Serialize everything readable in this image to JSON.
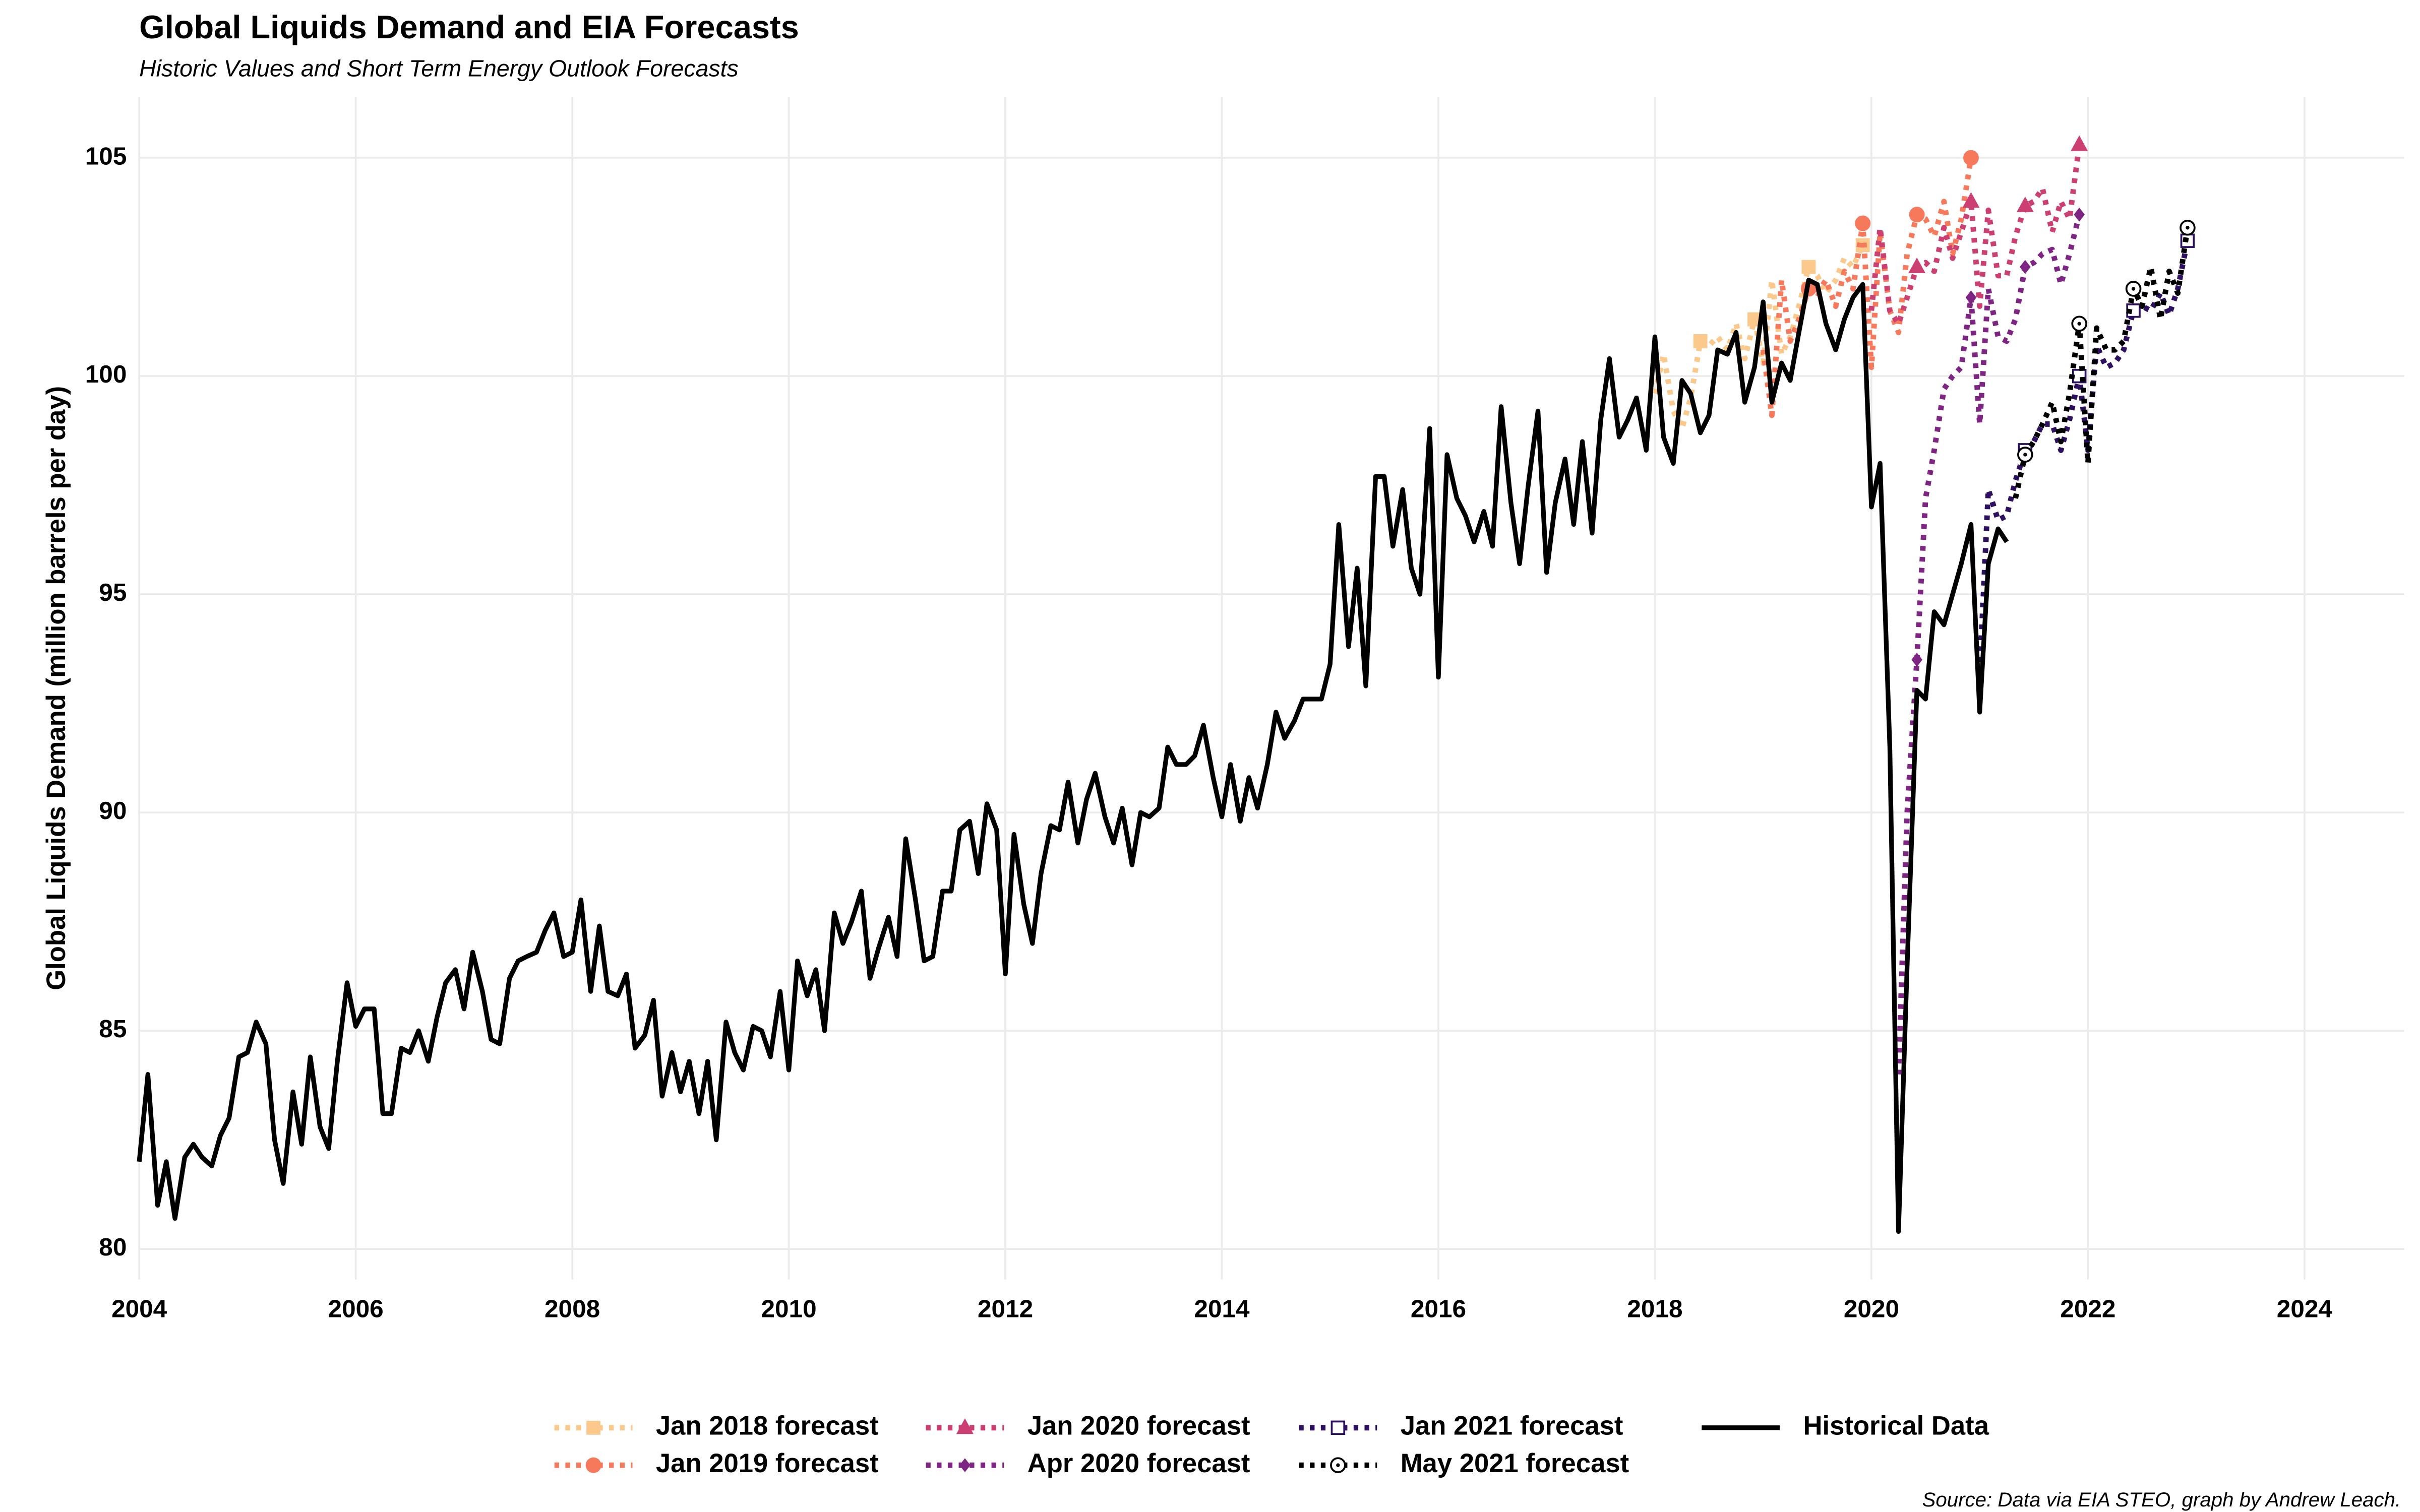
{
  "chart_data": {
    "type": "line",
    "title": "Global Liquids Demand and EIA Forecasts",
    "subtitle": "Historic Values and Short Term Energy Outlook Forecasts",
    "y_label": "Global Liquids Demand (million barrels per day)",
    "caption": "Source: Data via EIA STEO, graph by Andrew Leach.",
    "xlim": [
      2004,
      2024.92
    ],
    "ylim": [
      79.3,
      106.4
    ],
    "xticks": [
      2004,
      2006,
      2008,
      2010,
      2012,
      2014,
      2016,
      2018,
      2020,
      2022,
      2024
    ],
    "yticks": [
      80,
      85,
      90,
      95,
      100,
      105
    ],
    "grid": true,
    "legend": "bottom",
    "series": [
      {
        "name": "Jan 2018 forecast",
        "color": "#fcc98c",
        "dash": "dotted",
        "marker": "square",
        "x": [
          2018,
          2018.08,
          2018.17,
          2018.25,
          2018.33,
          2018.42,
          2018.5,
          2018.58,
          2018.67,
          2018.75,
          2018.83,
          2018.92,
          2019,
          2019.08,
          2019.17,
          2019.25,
          2019.33,
          2019.42,
          2019.5,
          2019.58,
          2019.67,
          2019.75,
          2019.83,
          2019.92
        ],
        "values": [
          99.6,
          100.5,
          99.2,
          98.8,
          99.5,
          100.8,
          100.7,
          100.9,
          100.6,
          101.2,
          100.4,
          101.3,
          100.3,
          102.2,
          100.5,
          100.9,
          101.6,
          102.5,
          102.3,
          101.9,
          102.2,
          102.7,
          102.5,
          103.0
        ]
      },
      {
        "name": "Jan 2019 forecast",
        "color": "#f7795c",
        "dash": "dotted",
        "marker": "circle",
        "x": [
          2019,
          2019.08,
          2019.17,
          2019.25,
          2019.33,
          2019.42,
          2019.5,
          2019.58,
          2019.67,
          2019.75,
          2019.83,
          2019.92,
          2020,
          2020.08,
          2020.17,
          2020.25,
          2020.33,
          2020.42,
          2020.5,
          2020.58,
          2020.67,
          2020.75,
          2020.83,
          2020.92
        ],
        "values": [
          100.6,
          99.1,
          102.2,
          100.8,
          101.3,
          102.0,
          101.9,
          102.2,
          101.6,
          102.4,
          102.0,
          103.5,
          100.2,
          103.3,
          101.5,
          101.0,
          102.8,
          103.7,
          103.6,
          103.2,
          104.0,
          102.8,
          103.6,
          105.0
        ]
      },
      {
        "name": "Jan 2020 forecast",
        "color": "#cc3f71",
        "dash": "dotted",
        "marker": "triangle",
        "x": [
          2020,
          2020.08,
          2020.17,
          2020.25,
          2020.33,
          2020.42,
          2020.5,
          2020.58,
          2020.67,
          2020.75,
          2020.83,
          2020.92,
          2021,
          2021.08,
          2021.17,
          2021.25,
          2021.33,
          2021.42,
          2021.5,
          2021.58,
          2021.67,
          2021.75,
          2021.83,
          2021.92
        ],
        "values": [
          101.5,
          103.4,
          101.5,
          101.2,
          101.8,
          102.5,
          102.6,
          102.4,
          103.4,
          102.7,
          103.3,
          104.0,
          101.6,
          103.8,
          102.3,
          102.3,
          103.2,
          103.9,
          104.0,
          104.3,
          103.3,
          104.0,
          103.6,
          105.3
        ]
      },
      {
        "name": "Apr 2020 forecast",
        "color": "#7e2482",
        "dash": "dotted",
        "marker": "diamond",
        "x": [
          2020.25,
          2020.33,
          2020.42,
          2020.5,
          2020.58,
          2020.67,
          2020.75,
          2020.83,
          2020.92,
          2021,
          2021.08,
          2021.17,
          2021.25,
          2021.33,
          2021.42,
          2021.5,
          2021.58,
          2021.67,
          2021.75,
          2021.83,
          2021.92
        ],
        "values": [
          84.0,
          90.0,
          93.5,
          97.2,
          98.3,
          99.7,
          100.0,
          100.2,
          101.8,
          98.9,
          102.0,
          100.9,
          100.8,
          101.3,
          102.5,
          102.6,
          102.8,
          102.9,
          102.1,
          102.8,
          103.7
        ]
      },
      {
        "name": "Jan 2021 forecast",
        "color": "#2d1160",
        "dash": "dotted",
        "marker": "square-open",
        "x": [
          2021,
          2021.08,
          2021.17,
          2021.25,
          2021.33,
          2021.42,
          2021.5,
          2021.58,
          2021.67,
          2021.75,
          2021.83,
          2021.92,
          2022,
          2022.08,
          2022.17,
          2022.25,
          2022.33,
          2022.42,
          2022.5,
          2022.58,
          2022.67,
          2022.75,
          2022.83,
          2022.92
        ],
        "values": [
          93.2,
          97.4,
          96.7,
          96.8,
          97.6,
          98.3,
          98.5,
          98.9,
          98.9,
          98.3,
          99.0,
          100.0,
          98.3,
          100.7,
          100.2,
          100.3,
          100.6,
          101.5,
          101.6,
          101.5,
          101.9,
          101.4,
          102.0,
          103.1
        ]
      },
      {
        "name": "May 2021 forecast",
        "color": "#000000",
        "dash": "dotted",
        "marker": "circle-open",
        "x": [
          2021.33,
          2021.42,
          2021.5,
          2021.58,
          2021.67,
          2021.75,
          2021.83,
          2021.92,
          2022,
          2022.08,
          2022.17,
          2022.25,
          2022.33,
          2022.42,
          2022.5,
          2022.58,
          2022.67,
          2022.75,
          2022.83,
          2022.92
        ],
        "values": [
          97.2,
          98.2,
          98.5,
          98.9,
          99.4,
          98.5,
          99.6,
          101.2,
          98.0,
          101.1,
          100.6,
          100.6,
          100.8,
          102.0,
          101.6,
          102.5,
          101.3,
          102.4,
          101.9,
          103.4
        ]
      },
      {
        "name": "Historical Data",
        "color": "#000000",
        "dash": "solid",
        "marker": "none",
        "x": [
          2004,
          2004.08,
          2004.17,
          2004.25,
          2004.33,
          2004.42,
          2004.5,
          2004.58,
          2004.67,
          2004.75,
          2004.83,
          2004.92,
          2005,
          2005.08,
          2005.17,
          2005.25,
          2005.33,
          2005.42,
          2005.5,
          2005.58,
          2005.67,
          2005.75,
          2005.83,
          2005.92,
          2006,
          2006.08,
          2006.17,
          2006.25,
          2006.33,
          2006.42,
          2006.5,
          2006.58,
          2006.67,
          2006.75,
          2006.83,
          2006.92,
          2007,
          2007.08,
          2007.17,
          2007.25,
          2007.33,
          2007.42,
          2007.5,
          2007.58,
          2007.67,
          2007.75,
          2007.83,
          2007.92,
          2008,
          2008.08,
          2008.17,
          2008.25,
          2008.33,
          2008.42,
          2008.5,
          2008.58,
          2008.67,
          2008.75,
          2008.83,
          2008.92,
          2009,
          2009.08,
          2009.17,
          2009.25,
          2009.33,
          2009.42,
          2009.5,
          2009.58,
          2009.67,
          2009.75,
          2009.83,
          2009.92,
          2010,
          2010.08,
          2010.17,
          2010.25,
          2010.33,
          2010.42,
          2010.5,
          2010.58,
          2010.67,
          2010.75,
          2010.83,
          2010.92,
          2011,
          2011.08,
          2011.17,
          2011.25,
          2011.33,
          2011.42,
          2011.5,
          2011.58,
          2011.67,
          2011.75,
          2011.83,
          2011.92,
          2012,
          2012.08,
          2012.17,
          2012.25,
          2012.33,
          2012.42,
          2012.5,
          2012.58,
          2012.67,
          2012.75,
          2012.83,
          2012.92,
          2013,
          2013.08,
          2013.17,
          2013.25,
          2013.33,
          2013.42,
          2013.5,
          2013.58,
          2013.67,
          2013.75,
          2013.83,
          2013.92,
          2014,
          2014.08,
          2014.17,
          2014.25,
          2014.33,
          2014.42,
          2014.5,
          2014.58,
          2014.67,
          2014.75,
          2014.83,
          2014.92,
          2015,
          2015.08,
          2015.17,
          2015.25,
          2015.33,
          2015.42,
          2015.5,
          2015.58,
          2015.67,
          2015.75,
          2015.83,
          2015.92,
          2016,
          2016.08,
          2016.17,
          2016.25,
          2016.33,
          2016.42,
          2016.5,
          2016.58,
          2016.67,
          2016.75,
          2016.83,
          2016.92,
          2017,
          2017.08,
          2017.17,
          2017.25,
          2017.33,
          2017.42,
          2017.5,
          2017.58,
          2017.67,
          2017.75,
          2017.83,
          2017.92,
          2018,
          2018.08,
          2018.17,
          2018.25,
          2018.33,
          2018.42,
          2018.5,
          2018.58,
          2018.67,
          2018.75,
          2018.83,
          2018.92,
          2019,
          2019.08,
          2019.17,
          2019.25,
          2019.33,
          2019.42,
          2019.5,
          2019.58,
          2019.67,
          2019.75,
          2019.83,
          2019.92,
          2020,
          2020.08,
          2020.17,
          2020.25,
          2020.33,
          2020.42,
          2020.5,
          2020.58,
          2020.67,
          2020.75,
          2020.83,
          2020.92,
          2021,
          2021.08,
          2021.17,
          2021.25
        ],
        "values": [
          82.0,
          84.0,
          81.0,
          82.0,
          80.7,
          82.1,
          82.4,
          82.1,
          81.9,
          82.6,
          83.0,
          84.4,
          84.5,
          85.2,
          84.7,
          82.5,
          81.5,
          83.6,
          82.4,
          84.4,
          82.8,
          82.3,
          84.3,
          86.1,
          85.1,
          85.5,
          85.5,
          83.1,
          83.1,
          84.6,
          84.5,
          85.0,
          84.3,
          85.3,
          86.1,
          86.4,
          85.5,
          86.8,
          85.9,
          84.8,
          84.7,
          86.2,
          86.6,
          86.7,
          86.8,
          87.3,
          87.7,
          86.7,
          86.8,
          88.0,
          85.9,
          87.4,
          85.9,
          85.8,
          86.3,
          84.6,
          84.9,
          85.7,
          83.5,
          84.5,
          83.6,
          84.3,
          83.1,
          84.3,
          82.5,
          85.2,
          84.5,
          84.1,
          85.1,
          85.0,
          84.4,
          85.9,
          84.1,
          86.6,
          85.8,
          86.4,
          85.0,
          87.7,
          87.0,
          87.5,
          88.2,
          86.2,
          86.9,
          87.6,
          86.7,
          89.4,
          88.0,
          86.6,
          86.7,
          88.2,
          88.2,
          89.6,
          89.8,
          88.6,
          90.2,
          89.6,
          86.3,
          89.5,
          87.9,
          87.0,
          88.6,
          89.7,
          89.6,
          90.7,
          89.3,
          90.3,
          90.9,
          89.9,
          89.3,
          90.1,
          88.8,
          90.0,
          89.9,
          90.1,
          91.5,
          91.1,
          91.1,
          91.3,
          92.0,
          90.8,
          89.9,
          91.1,
          89.8,
          90.8,
          90.1,
          91.1,
          92.3,
          91.7,
          92.1,
          92.6,
          92.6,
          92.6,
          93.4,
          96.6,
          93.8,
          95.6,
          92.9,
          97.7,
          97.7,
          96.1,
          97.4,
          95.6,
          95.0,
          98.8,
          93.1,
          98.2,
          97.2,
          96.8,
          96.2,
          96.9,
          96.1,
          99.3,
          97.1,
          95.7,
          97.5,
          99.2,
          95.5,
          97.1,
          98.1,
          96.6,
          98.5,
          96.4,
          99.0,
          100.4,
          98.6,
          99.0,
          99.5,
          98.3,
          100.9,
          98.6,
          98.0,
          99.9,
          99.6,
          98.7,
          99.1,
          100.6,
          100.5,
          101.0,
          99.4,
          100.2,
          101.7,
          99.4,
          100.3,
          99.9,
          101.0,
          102.2,
          102.1,
          101.2,
          100.6,
          101.3,
          101.8,
          102.1,
          97.0,
          98.0,
          91.5,
          80.4,
          86.5,
          92.8,
          92.6,
          94.6,
          94.3,
          95.0,
          95.7,
          96.6,
          92.3,
          95.7,
          96.5,
          96.2
        ]
      }
    ]
  }
}
